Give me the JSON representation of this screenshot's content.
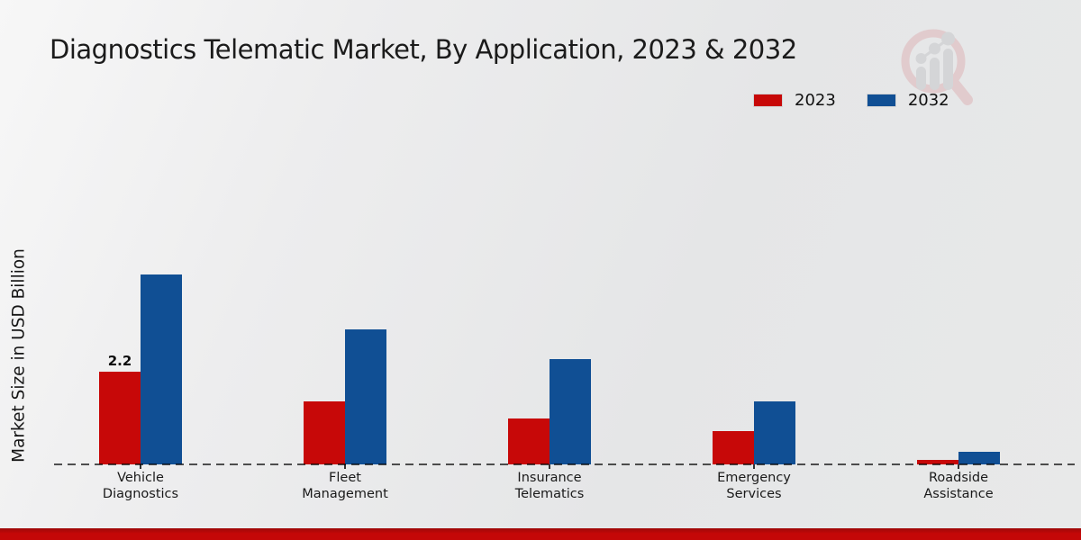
{
  "page": {
    "title": "Diagnostics Telematic Market, By Application, 2023 & 2032"
  },
  "watermark": {
    "icon": "magnifier-bar-chart-logo-icon",
    "ring_color": "#dfb9bc",
    "glyph_color": "#c9cacd"
  },
  "legend": [
    {
      "label": "2023",
      "color": "#c70808"
    },
    {
      "label": "2032",
      "color": "#104f94"
    }
  ],
  "chart_data": {
    "type": "bar",
    "title": "Diagnostics Telematic Market, By Application, 2023 & 2032",
    "xlabel": "",
    "ylabel": "Market Size in USD Billion",
    "categories": [
      "Vehicle Diagnostics",
      "Fleet Management",
      "Insurance Telematics",
      "Emergency Services",
      "Roadside Assistance"
    ],
    "category_label_lines": [
      [
        "Vehicle",
        "Diagnostics"
      ],
      [
        "Fleet",
        "Management"
      ],
      [
        "Insurance",
        "Telematics"
      ],
      [
        "Emergency",
        "Services"
      ],
      [
        "Roadside",
        "Assistance"
      ]
    ],
    "series": [
      {
        "name": "2023",
        "color": "#c70808",
        "values": [
          2.2,
          1.5,
          1.1,
          0.8,
          0.1
        ]
      },
      {
        "name": "2032",
        "color": "#104f94",
        "values": [
          4.5,
          3.2,
          2.5,
          1.5,
          0.3
        ]
      }
    ],
    "annotations": [
      {
        "series": "2023",
        "category": "Vehicle Diagnostics",
        "text": "2.2"
      }
    ],
    "ylim": [
      0,
      5
    ],
    "grid": false,
    "legend_position": "top-right",
    "baseline_style": "dashed",
    "y_axis_ticks_visible": false
  },
  "footer": {
    "color": "#c40707",
    "top_color": "#9d0808"
  }
}
